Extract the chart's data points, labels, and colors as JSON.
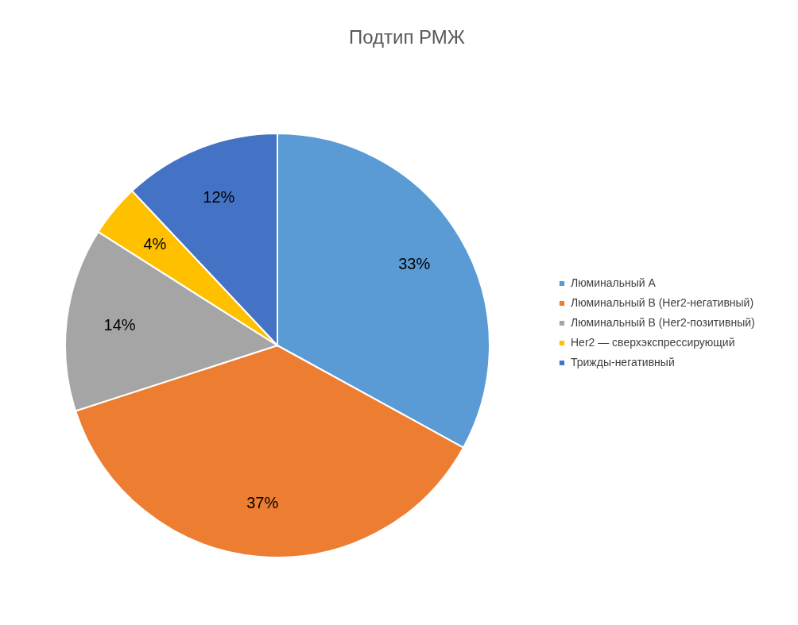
{
  "chart_data": {
    "type": "pie",
    "title": "Подтип РМЖ",
    "categories": [
      "Люминальный А",
      "Люминальный В (Her2-негативный)",
      "Люминальный В (Her2-позитивный)",
      "Her2 — сверхэкспрессирующий",
      "Трижды-негативный"
    ],
    "values": [
      33,
      37,
      14,
      4,
      12
    ],
    "colors": [
      "#5b9bd5",
      "#ed7d31",
      "#a5a5a5",
      "#ffc000",
      "#4472c4"
    ],
    "value_labels": [
      "33%",
      "37%",
      "14%",
      "4%",
      "12%"
    ],
    "legend": "right"
  }
}
